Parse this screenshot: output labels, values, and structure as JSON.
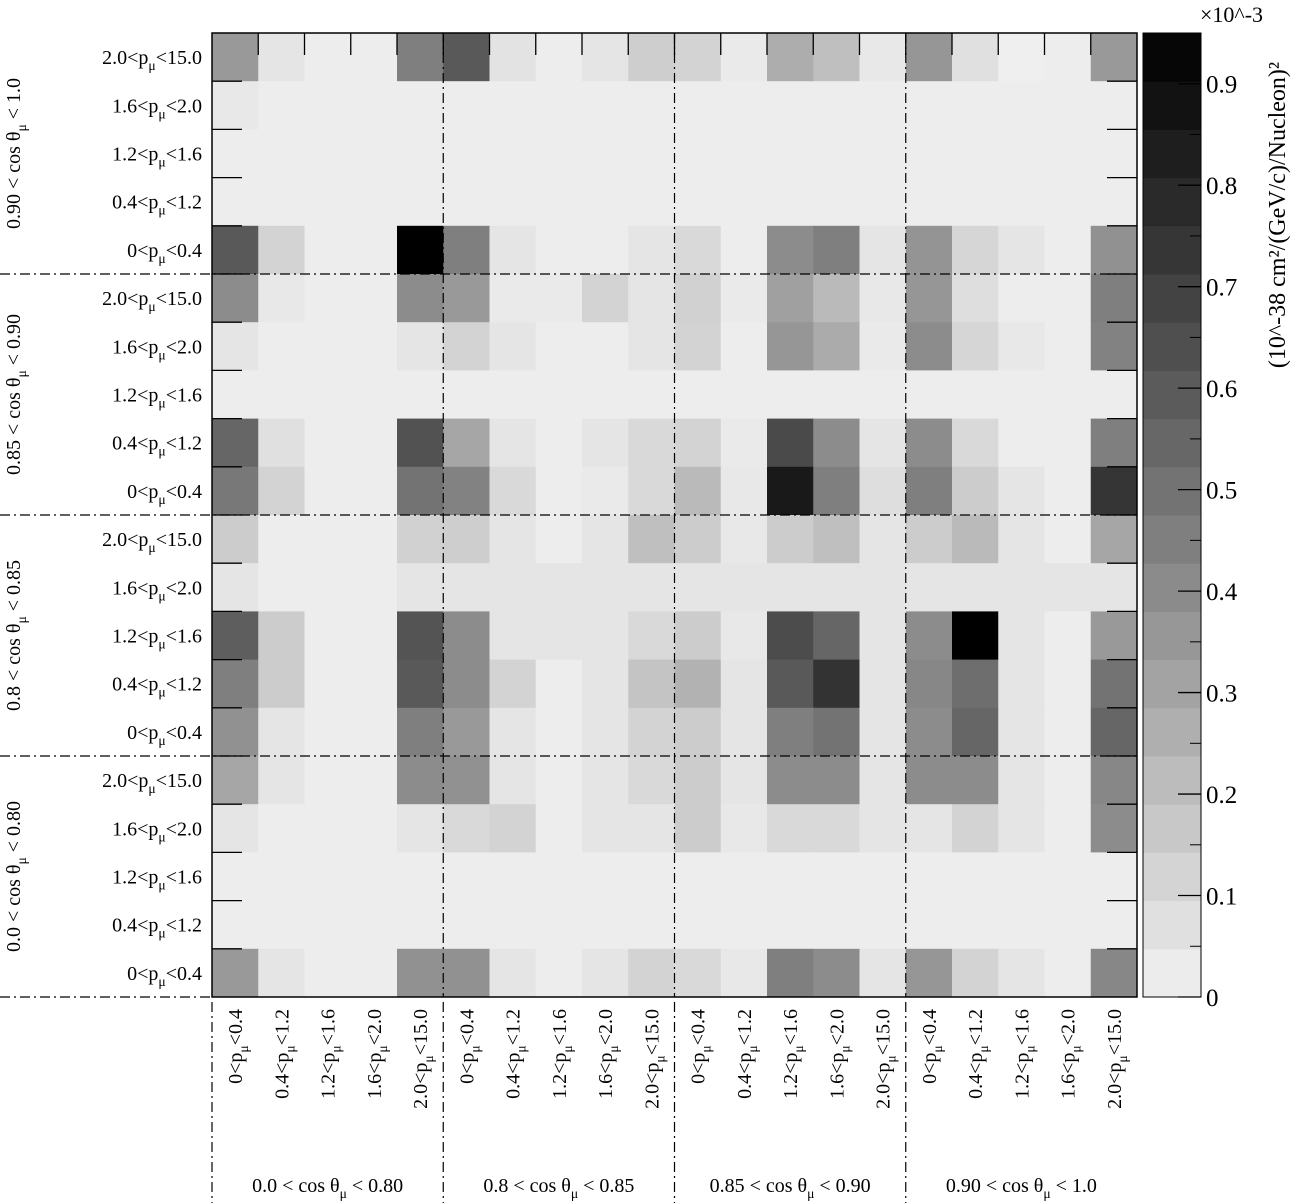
{
  "chart_data": {
    "type": "heatmap",
    "bin_labels": [
      "0<p_μ<0.4",
      "0.4<p_μ<1.2",
      "1.2<p_μ<1.6",
      "1.6<p_μ<2.0",
      "2.0<p_μ<15.0"
    ],
    "group_labels": [
      "0.0 < cos θ_μ < 0.80",
      "0.8 < cos θ_μ < 0.85",
      "0.85 < cos θ_μ < 0.90",
      "0.90 < cos θ_μ < 1.0"
    ],
    "colorbar": {
      "title": "(10^-38 cm²/(GeV/c)/Nucleon)²",
      "multiplier": "×10^-3",
      "ticks": [
        "0",
        "0.1",
        "0.2",
        "0.3",
        "0.4",
        "0.5",
        "0.6",
        "0.7",
        "0.8",
        "0.9"
      ],
      "range": [
        0,
        0.95
      ],
      "color_low": "#f2f2f2",
      "color_high": "#000000"
    },
    "values": [
      [
        0.35,
        0.05,
        0.02,
        0.02,
        0.45,
        0.6,
        0.06,
        0.02,
        0.05,
        0.14,
        0.12,
        0.03,
        0.27,
        0.2,
        0.04,
        0.36,
        0.07,
        0.01,
        0.02,
        0.35
      ],
      [
        0.04,
        0.02,
        0.02,
        0.02,
        0.02,
        0.02,
        0.02,
        0.02,
        0.02,
        0.02,
        0.02,
        0.02,
        0.02,
        0.02,
        0.02,
        0.02,
        0.02,
        0.02,
        0.02,
        0.02
      ],
      [
        0.02,
        0.02,
        0.02,
        0.02,
        0.02,
        0.02,
        0.02,
        0.02,
        0.02,
        0.02,
        0.02,
        0.02,
        0.02,
        0.02,
        0.02,
        0.02,
        0.02,
        0.02,
        0.02,
        0.02
      ],
      [
        0.02,
        0.02,
        0.02,
        0.02,
        0.02,
        0.02,
        0.02,
        0.02,
        0.02,
        0.02,
        0.02,
        0.02,
        0.02,
        0.02,
        0.02,
        0.02,
        0.02,
        0.02,
        0.02,
        0.02
      ],
      [
        0.6,
        0.12,
        0.02,
        0.02,
        0.95,
        0.45,
        0.05,
        0.02,
        0.02,
        0.05,
        0.1,
        0.02,
        0.4,
        0.45,
        0.05,
        0.37,
        0.11,
        0.05,
        0.02,
        0.38
      ],
      [
        0.4,
        0.04,
        0.02,
        0.02,
        0.4,
        0.35,
        0.03,
        0.03,
        0.12,
        0.05,
        0.13,
        0.03,
        0.32,
        0.22,
        0.04,
        0.36,
        0.08,
        0.02,
        0.02,
        0.45
      ],
      [
        0.05,
        0.02,
        0.02,
        0.02,
        0.05,
        0.12,
        0.05,
        0.02,
        0.02,
        0.05,
        0.12,
        0.02,
        0.36,
        0.28,
        0.03,
        0.4,
        0.11,
        0.04,
        0.02,
        0.44
      ],
      [
        0.02,
        0.02,
        0.02,
        0.02,
        0.02,
        0.02,
        0.02,
        0.02,
        0.02,
        0.02,
        0.02,
        0.02,
        0.02,
        0.02,
        0.02,
        0.02,
        0.02,
        0.02,
        0.02,
        0.02
      ],
      [
        0.55,
        0.07,
        0.02,
        0.02,
        0.63,
        0.3,
        0.05,
        0.02,
        0.05,
        0.1,
        0.12,
        0.03,
        0.66,
        0.4,
        0.05,
        0.4,
        0.1,
        0.02,
        0.02,
        0.45
      ],
      [
        0.48,
        0.12,
        0.02,
        0.02,
        0.5,
        0.44,
        0.1,
        0.02,
        0.03,
        0.1,
        0.22,
        0.04,
        0.85,
        0.45,
        0.08,
        0.45,
        0.15,
        0.05,
        0.02,
        0.74
      ],
      [
        0.15,
        0.02,
        0.02,
        0.02,
        0.13,
        0.14,
        0.05,
        0.02,
        0.05,
        0.2,
        0.15,
        0.04,
        0.15,
        0.2,
        0.05,
        0.15,
        0.22,
        0.05,
        0.02,
        0.3
      ],
      [
        0.05,
        0.02,
        0.02,
        0.02,
        0.05,
        0.05,
        0.05,
        0.05,
        0.05,
        0.05,
        0.05,
        0.05,
        0.05,
        0.05,
        0.05,
        0.05,
        0.05,
        0.05,
        0.05,
        0.05
      ],
      [
        0.58,
        0.15,
        0.02,
        0.02,
        0.62,
        0.4,
        0.05,
        0.05,
        0.05,
        0.1,
        0.15,
        0.04,
        0.65,
        0.55,
        0.05,
        0.4,
        0.95,
        0.05,
        0.02,
        0.35
      ],
      [
        0.45,
        0.15,
        0.02,
        0.02,
        0.6,
        0.4,
        0.12,
        0.02,
        0.05,
        0.18,
        0.25,
        0.05,
        0.6,
        0.75,
        0.05,
        0.42,
        0.52,
        0.05,
        0.02,
        0.5
      ],
      [
        0.38,
        0.05,
        0.02,
        0.02,
        0.45,
        0.35,
        0.05,
        0.02,
        0.05,
        0.12,
        0.15,
        0.05,
        0.45,
        0.5,
        0.05,
        0.4,
        0.55,
        0.05,
        0.02,
        0.55
      ],
      [
        0.3,
        0.05,
        0.02,
        0.02,
        0.4,
        0.38,
        0.05,
        0.02,
        0.05,
        0.1,
        0.15,
        0.05,
        0.4,
        0.4,
        0.05,
        0.4,
        0.4,
        0.05,
        0.02,
        0.42
      ],
      [
        0.05,
        0.02,
        0.02,
        0.02,
        0.05,
        0.1,
        0.12,
        0.02,
        0.05,
        0.05,
        0.15,
        0.04,
        0.1,
        0.1,
        0.05,
        0.05,
        0.12,
        0.05,
        0.02,
        0.4
      ],
      [
        0.02,
        0.02,
        0.02,
        0.02,
        0.02,
        0.02,
        0.02,
        0.02,
        0.02,
        0.02,
        0.02,
        0.02,
        0.02,
        0.02,
        0.02,
        0.02,
        0.02,
        0.02,
        0.02,
        0.02
      ],
      [
        0.02,
        0.02,
        0.02,
        0.02,
        0.02,
        0.02,
        0.02,
        0.02,
        0.02,
        0.02,
        0.02,
        0.02,
        0.02,
        0.02,
        0.02,
        0.02,
        0.02,
        0.02,
        0.02,
        0.02
      ],
      [
        0.35,
        0.05,
        0.02,
        0.02,
        0.38,
        0.38,
        0.05,
        0.02,
        0.05,
        0.12,
        0.1,
        0.04,
        0.45,
        0.4,
        0.05,
        0.36,
        0.12,
        0.05,
        0.02,
        0.42
      ]
    ]
  }
}
